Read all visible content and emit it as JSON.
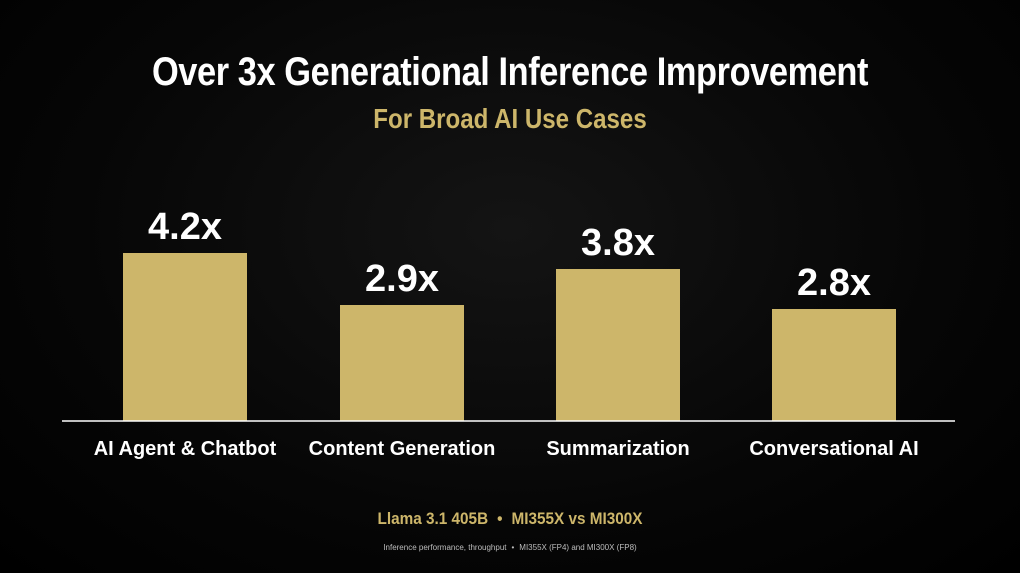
{
  "title": "Over 3x Generational Inference Improvement",
  "subtitle": "For Broad AI Use Cases",
  "chart_data": {
    "type": "bar",
    "categories": [
      "AI Agent & Chatbot",
      "Content Generation",
      "Summarization",
      "Conversational AI"
    ],
    "values": [
      4.2,
      2.9,
      3.8,
      2.8
    ],
    "value_labels": [
      "4.2x",
      "2.9x",
      "3.8x",
      "2.8x"
    ],
    "ylim": [
      0,
      4.2
    ],
    "grid": false,
    "bar_color": "#cdb66a"
  },
  "footnote": {
    "model": "Llama 3.1 405B",
    "separator": "•",
    "comparison": "MI355X vs MI300X",
    "detail_left": "Inference performance, throughput",
    "detail_right": "MI355X (FP4) and MI300X (FP8)"
  },
  "colors": {
    "background": "#000000",
    "accent": "#cdb66a",
    "text": "#ffffff"
  }
}
